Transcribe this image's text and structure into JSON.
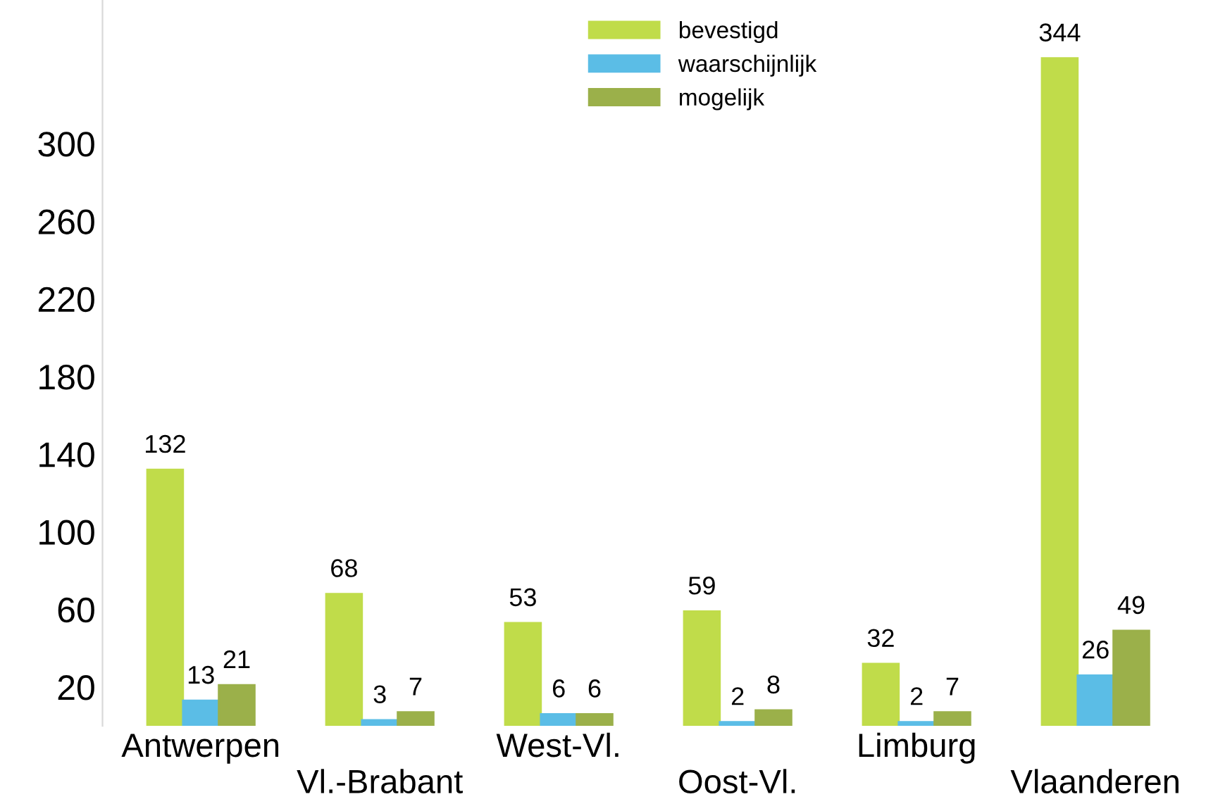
{
  "chart_data": {
    "type": "bar",
    "categories": [
      "Antwerpen",
      "Vl.-Brabant",
      "West-Vl.",
      "Oost-Vl.",
      "Limburg",
      "Vlaanderen"
    ],
    "series": [
      {
        "name": "bevestigd",
        "color": "#c0dc4a",
        "values": [
          132,
          68,
          53,
          59,
          32,
          344
        ]
      },
      {
        "name": "waarschijnlijk",
        "color": "#5bbde6",
        "values": [
          13,
          3,
          6,
          2,
          2,
          26
        ]
      },
      {
        "name": "mogelijk",
        "color": "#9bb04a",
        "values": [
          21,
          7,
          6,
          8,
          7,
          49
        ]
      }
    ],
    "ylim": [
      0,
      374
    ],
    "yticks": [
      20,
      60,
      100,
      140,
      180,
      220,
      260,
      300
    ],
    "grid": false,
    "legend": "top",
    "data_labels": true
  }
}
